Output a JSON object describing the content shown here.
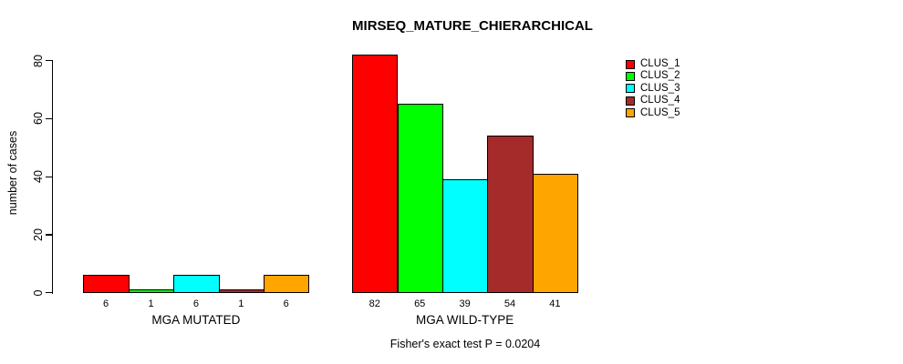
{
  "chart_data": {
    "type": "bar",
    "title": "MIRSEQ_MATURE_CHIERARCHICAL",
    "ylabel": "number of cases",
    "xlabel": "",
    "ylim": [
      0,
      82
    ],
    "yticks": [
      0,
      20,
      40,
      60,
      80
    ],
    "grid": false,
    "legend_position": "right",
    "bar_value_labels_shown": true,
    "categories": [
      "MGA MUTATED",
      "MGA WILD-TYPE"
    ],
    "series": [
      {
        "name": "CLUS_1",
        "color": "#FF0000",
        "values": [
          6,
          82
        ]
      },
      {
        "name": "CLUS_2",
        "color": "#00FF00",
        "values": [
          1,
          65
        ]
      },
      {
        "name": "CLUS_3",
        "color": "#00FFFF",
        "values": [
          6,
          39
        ]
      },
      {
        "name": "CLUS_4",
        "color": "#A52A2A",
        "values": [
          1,
          54
        ]
      },
      {
        "name": "CLUS_5",
        "color": "#FFA500",
        "values": [
          6,
          41
        ]
      }
    ],
    "annotation": "Fisher's exact test P = 0.0204",
    "axis_color": "#000000",
    "background": "#FFFFFF",
    "text_color": "#000000"
  }
}
